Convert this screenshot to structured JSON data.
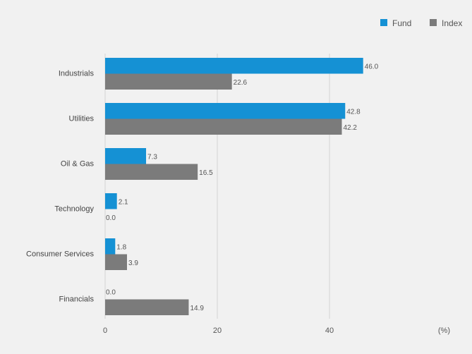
{
  "chart_data": {
    "type": "bar",
    "orientation": "horizontal",
    "categories": [
      "Industrials",
      "Utilities",
      "Oil & Gas",
      "Technology",
      "Consumer Services",
      "Financials"
    ],
    "series": [
      {
        "name": "Fund",
        "color": "#1591d4",
        "values": [
          46.0,
          42.8,
          7.3,
          2.1,
          1.8,
          0.0
        ]
      },
      {
        "name": "Index",
        "color": "#7b7b7b",
        "values": [
          22.6,
          42.2,
          16.5,
          0.0,
          3.9,
          14.9
        ]
      }
    ],
    "value_labels": [
      [
        "46.0",
        "22.6"
      ],
      [
        "42.8",
        "42.2"
      ],
      [
        "7.3",
        "16.5"
      ],
      [
        "2.1",
        "0.0"
      ],
      [
        "1.8",
        "3.9"
      ],
      [
        "0.0",
        "14.9"
      ]
    ],
    "xticks": [
      "0",
      "20",
      "40"
    ],
    "xtick_values": [
      0,
      20,
      40
    ],
    "xlim": [
      0,
      60
    ],
    "unit_label": "(%)",
    "grid": "vertical",
    "legend_position": "top-right"
  }
}
